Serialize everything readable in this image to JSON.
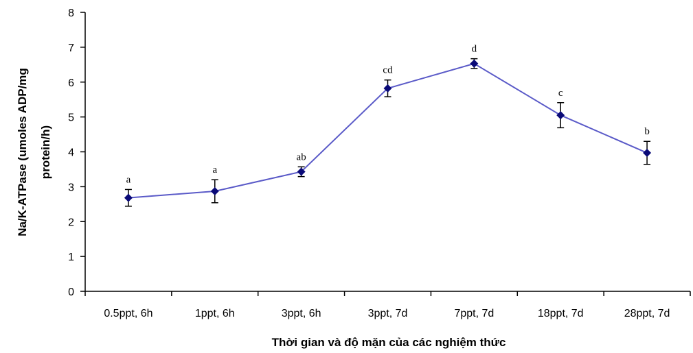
{
  "chart_data": {
    "type": "line",
    "categories": [
      "0.5ppt, 6h",
      "1ppt, 6h",
      "3ppt, 6h",
      "3ppt, 7d",
      "7ppt, 7d",
      "18ppt, 7d",
      "28ppt, 7d"
    ],
    "series": [
      {
        "values": [
          2.68,
          2.87,
          3.43,
          5.82,
          6.53,
          5.05,
          3.97
        ],
        "errors": [
          0.24,
          0.33,
          0.14,
          0.24,
          0.14,
          0.36,
          0.33
        ],
        "labels": [
          "a",
          "a",
          "ab",
          "cd",
          "d",
          "c",
          "b"
        ],
        "color": "#5a5ac8",
        "marker_color": "#0a0a78"
      }
    ],
    "title": "",
    "xlabel": "Thời gian và độ mặn của các nghiệm thức",
    "ylabel_line1": "Na/K-ATPase (umoles ADP/mg",
    "ylabel_line2": "protein/h)",
    "ylim": [
      0,
      8
    ],
    "yticks": [
      "0",
      "1",
      "2",
      "3",
      "4",
      "5",
      "6",
      "7",
      "8"
    ],
    "grid": false,
    "legend": "none"
  }
}
